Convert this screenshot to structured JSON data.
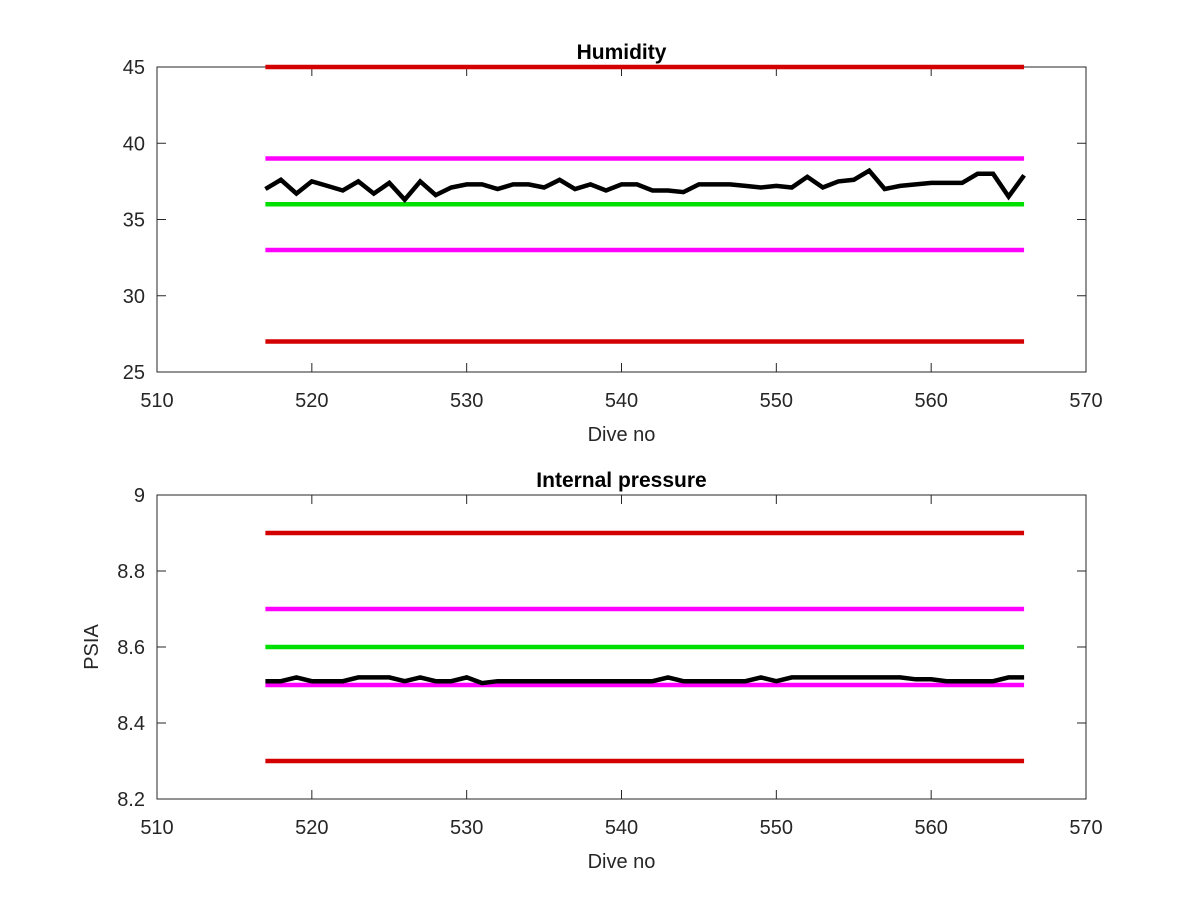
{
  "chart_data": [
    {
      "type": "line",
      "title": "Humidity",
      "xlabel": "Dive no",
      "ylabel": "",
      "xlim": [
        510,
        570
      ],
      "ylim": [
        25,
        45
      ],
      "xticks": [
        "510",
        "520",
        "530",
        "540",
        "550",
        "560",
        "570"
      ],
      "yticks": [
        "25",
        "30",
        "35",
        "40",
        "45"
      ],
      "grid": false,
      "reference_lines": [
        {
          "value": 45,
          "x_range": [
            517,
            566
          ],
          "color": "#d40000"
        },
        {
          "value": 39,
          "x_range": [
            517,
            566
          ],
          "color": "#ff00ff"
        },
        {
          "value": 36,
          "x_range": [
            517,
            566
          ],
          "color": "#00e000"
        },
        {
          "value": 33,
          "x_range": [
            517,
            566
          ],
          "color": "#ff00ff"
        },
        {
          "value": 27,
          "x_range": [
            517,
            566
          ],
          "color": "#d40000"
        }
      ],
      "series": [
        {
          "color": "#000000",
          "x": [
            517,
            518,
            519,
            520,
            521,
            522,
            523,
            524,
            525,
            526,
            527,
            528,
            529,
            530,
            531,
            532,
            533,
            534,
            535,
            536,
            537,
            538,
            539,
            540,
            541,
            542,
            543,
            544,
            545,
            546,
            547,
            548,
            549,
            550,
            551,
            552,
            553,
            554,
            555,
            556,
            557,
            558,
            559,
            560,
            561,
            562,
            563,
            564,
            565,
            566
          ],
          "values": [
            37.0,
            37.6,
            36.7,
            37.5,
            37.2,
            36.9,
            37.5,
            36.7,
            37.4,
            36.3,
            37.5,
            36.6,
            37.1,
            37.3,
            37.3,
            37.0,
            37.3,
            37.3,
            37.1,
            37.6,
            37.0,
            37.3,
            36.9,
            37.3,
            37.3,
            36.9,
            36.9,
            36.8,
            37.3,
            37.3,
            37.3,
            37.2,
            37.1,
            37.2,
            37.1,
            37.8,
            37.1,
            37.5,
            37.6,
            38.2,
            37.0,
            37.2,
            37.3,
            37.4,
            37.4,
            37.4,
            38.0,
            38.0,
            36.5,
            37.9
          ]
        }
      ]
    },
    {
      "type": "line",
      "title": "Internal pressure",
      "xlabel": "Dive no",
      "ylabel": "PSIA",
      "xlim": [
        510,
        570
      ],
      "ylim": [
        8.2,
        9
      ],
      "xticks": [
        "510",
        "520",
        "530",
        "540",
        "550",
        "560",
        "570"
      ],
      "yticks": [
        "8.2",
        "8.4",
        "8.6",
        "8.8",
        "9"
      ],
      "grid": false,
      "reference_lines": [
        {
          "value": 8.9,
          "x_range": [
            517,
            566
          ],
          "color": "#d40000"
        },
        {
          "value": 8.7,
          "x_range": [
            517,
            566
          ],
          "color": "#ff00ff"
        },
        {
          "value": 8.6,
          "x_range": [
            517,
            566
          ],
          "color": "#00e000"
        },
        {
          "value": 8.5,
          "x_range": [
            517,
            566
          ],
          "color": "#ff00ff"
        },
        {
          "value": 8.3,
          "x_range": [
            517,
            566
          ],
          "color": "#d40000"
        }
      ],
      "series": [
        {
          "color": "#000000",
          "x": [
            517,
            518,
            519,
            520,
            521,
            522,
            523,
            524,
            525,
            526,
            527,
            528,
            529,
            530,
            531,
            532,
            533,
            534,
            535,
            536,
            537,
            538,
            539,
            540,
            541,
            542,
            543,
            544,
            545,
            546,
            547,
            548,
            549,
            550,
            551,
            552,
            553,
            554,
            555,
            556,
            557,
            558,
            559,
            560,
            561,
            562,
            563,
            564,
            565,
            566
          ],
          "values": [
            8.51,
            8.51,
            8.52,
            8.51,
            8.51,
            8.51,
            8.52,
            8.52,
            8.52,
            8.51,
            8.52,
            8.51,
            8.51,
            8.52,
            8.505,
            8.51,
            8.51,
            8.51,
            8.51,
            8.51,
            8.51,
            8.51,
            8.51,
            8.51,
            8.51,
            8.51,
            8.52,
            8.51,
            8.51,
            8.51,
            8.51,
            8.51,
            8.52,
            8.51,
            8.52,
            8.52,
            8.52,
            8.52,
            8.52,
            8.52,
            8.52,
            8.52,
            8.515,
            8.515,
            8.51,
            8.51,
            8.51,
            8.51,
            8.52,
            8.52
          ]
        }
      ]
    }
  ]
}
